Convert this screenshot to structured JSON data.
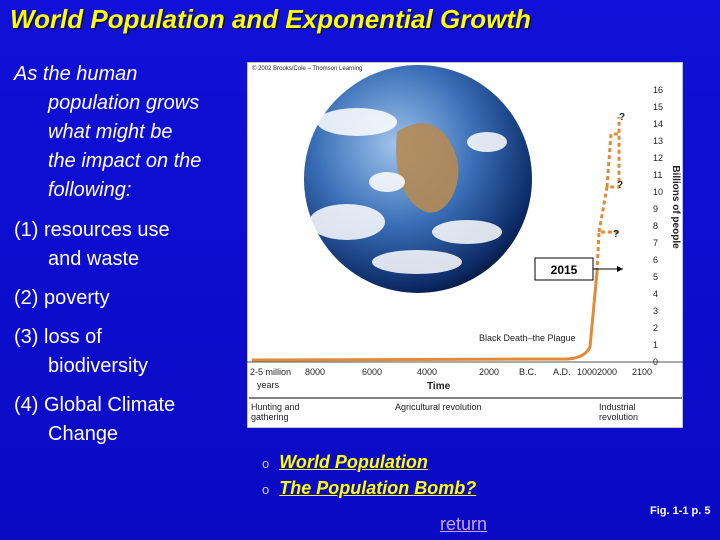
{
  "title": "World Population and Exponential Growth",
  "question": [
    "As the human",
    "population grows",
    "what might be",
    "the impact on the",
    "following:"
  ],
  "items": [
    [
      "(1) resources use",
      "and waste"
    ],
    [
      "(2) poverty"
    ],
    [
      "(3) loss of",
      "biodiversity"
    ],
    [
      "(4) Global Climate",
      "Change"
    ]
  ],
  "figure": {
    "credit": "© 2002 Brooks/Cole – Thomson Learning",
    "y_axis_label": "Billions of people",
    "y_ticks": [
      0,
      1,
      2,
      3,
      4,
      5,
      6,
      7,
      8,
      9,
      10,
      11,
      12,
      13,
      14,
      15,
      16
    ],
    "x_labels": [
      "2-5 million",
      "8000",
      "6000",
      "4000",
      "2000",
      "B.C.",
      "A.D.",
      "1000",
      "2000",
      "2100"
    ],
    "x_sublabel": "years",
    "x_axis_label": "Time",
    "eras": [
      [
        "Hunting and",
        "gathering"
      ],
      [
        "Agricultural revolution"
      ],
      [
        "Industrial",
        "revolution"
      ]
    ],
    "plague_label": "Black Death–the Plague",
    "unknowns": [
      "?",
      "?",
      "?"
    ],
    "year_label": "2015"
  },
  "links": [
    "World Population",
    "The Population Bomb?"
  ],
  "return_link": "return",
  "figure_reference": "Fig. 1-1 p. 5"
}
